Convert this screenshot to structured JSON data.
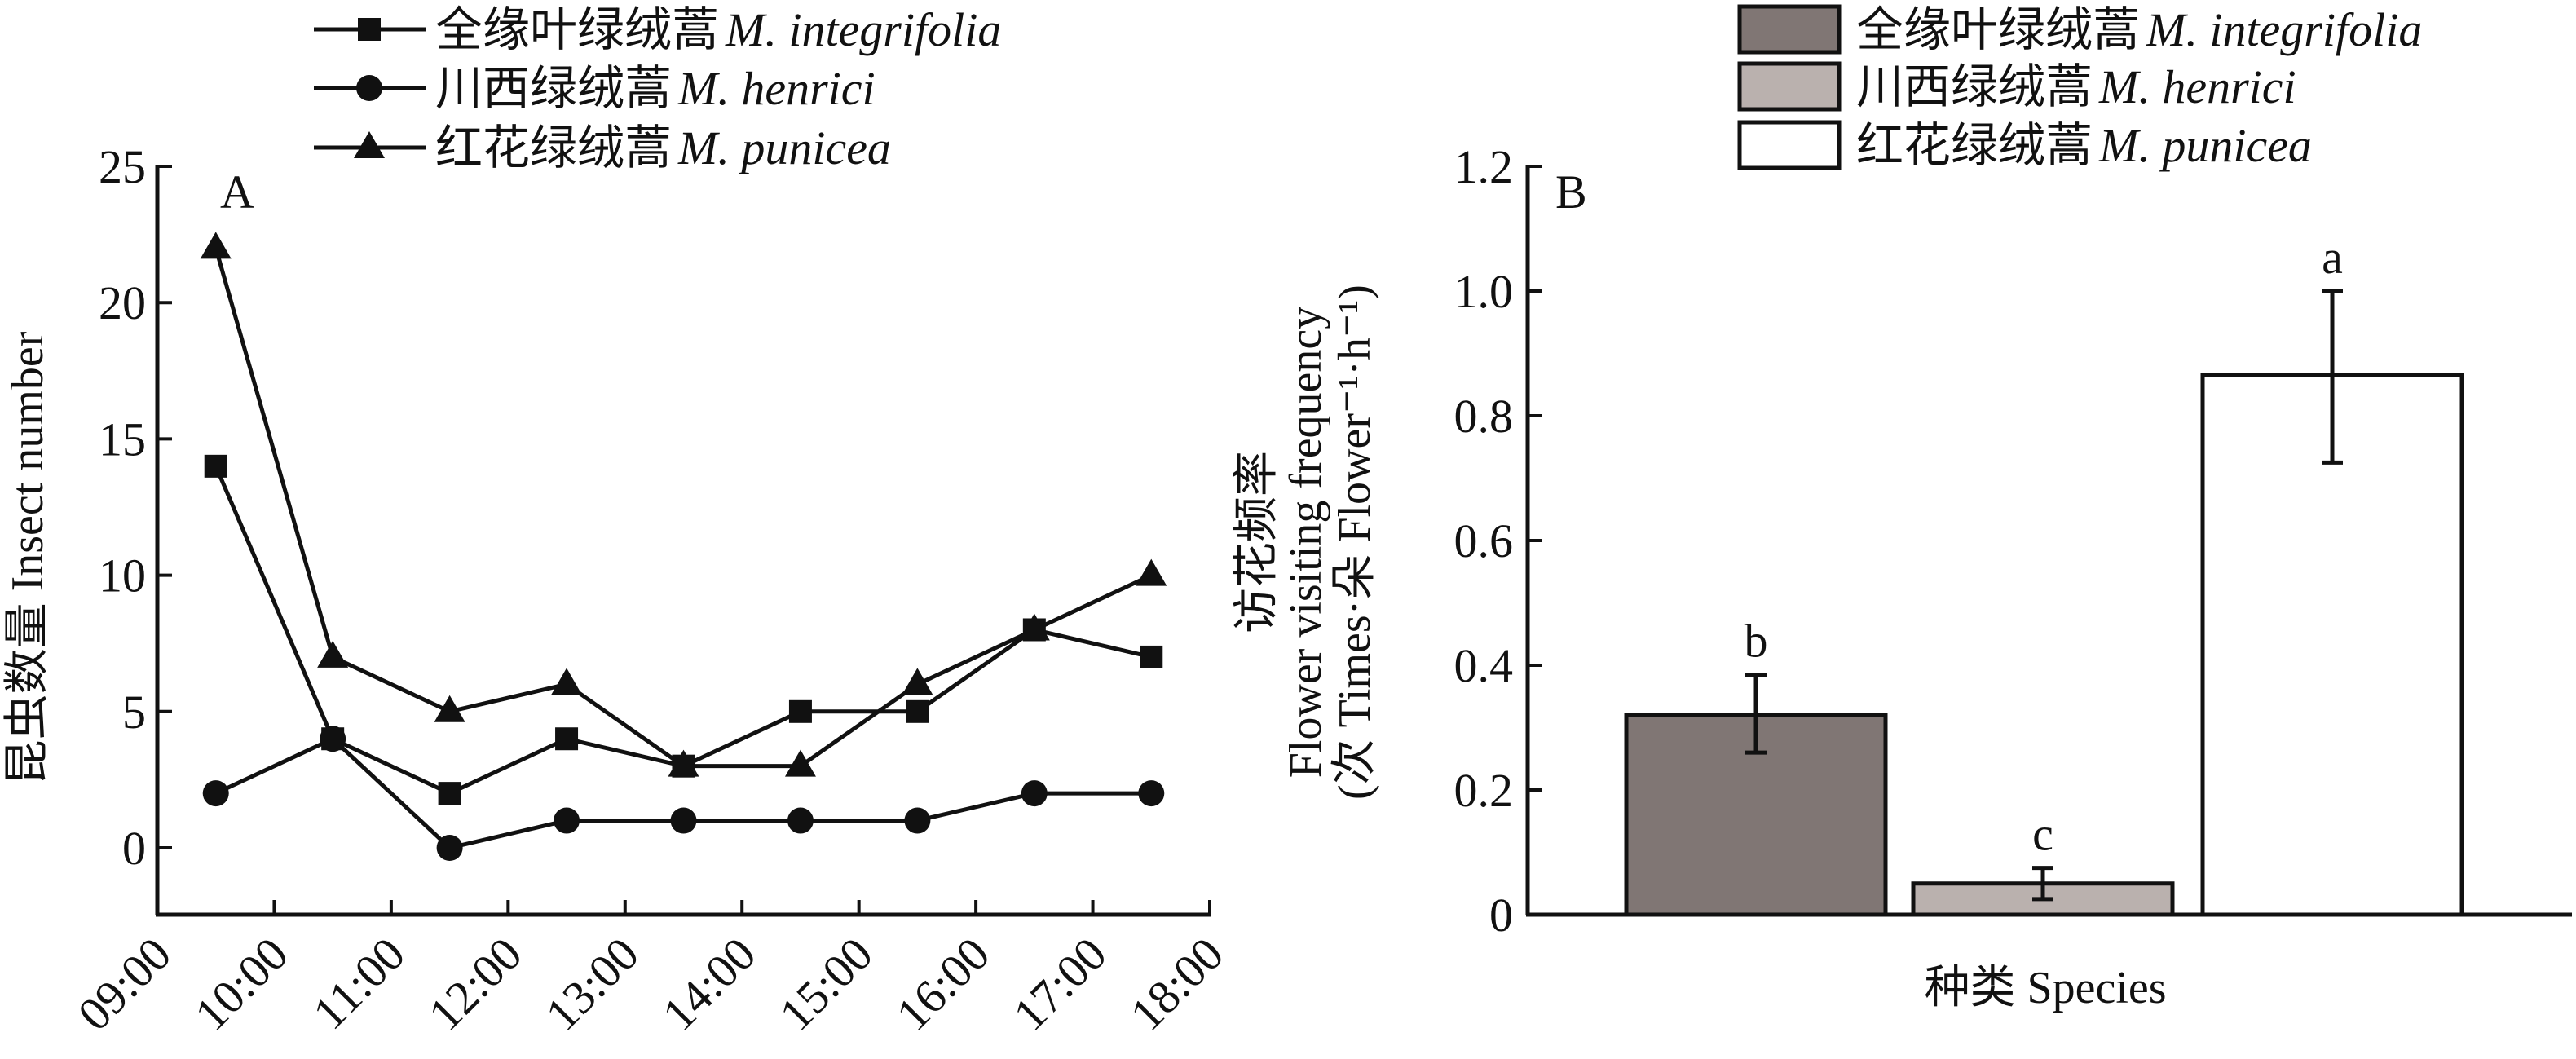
{
  "chart_data": [
    {
      "type": "line",
      "panel_label": "A",
      "ylabel": "昆虫数量 Insect number",
      "ylim": [
        -2.5,
        25
      ],
      "yticks": [
        "0",
        "5",
        "10",
        "15",
        "20",
        "25"
      ],
      "x_tick_labels": [
        "09:00",
        "10:00",
        "11:00",
        "12:00",
        "13:00",
        "14:00",
        "15:00",
        "16:00",
        "17:00",
        "18:00"
      ],
      "x": [
        "09:30",
        "10:30",
        "11:30",
        "12:30",
        "13:30",
        "14:30",
        "15:30",
        "16:30",
        "17:30"
      ],
      "legend_position": "top",
      "series": [
        {
          "name_cn": "全缘叶绿绒蒿",
          "name_latin": "M. integrifolia",
          "marker": "square",
          "values": [
            14,
            4,
            2,
            4,
            3,
            5,
            5,
            8,
            7
          ]
        },
        {
          "name_cn": "川西绿绒蒿",
          "name_latin": "M. henrici",
          "marker": "circle",
          "values": [
            2,
            4,
            0,
            1,
            1,
            1,
            1,
            2,
            2
          ]
        },
        {
          "name_cn": "红花绿绒蒿",
          "name_latin": "M. punicea",
          "marker": "triangle",
          "values": [
            22,
            7,
            5,
            6,
            3,
            3,
            6,
            8,
            10
          ]
        }
      ]
    },
    {
      "type": "bar",
      "panel_label": "B",
      "ylabel_lines": [
        "访花频率",
        "Flower visiting frequency",
        "(次 Times·朵 Flower⁻¹·h⁻¹)"
      ],
      "xlabel": "种类 Species",
      "ylim": [
        0,
        1.2
      ],
      "yticks": [
        "0",
        "0.2",
        "0.4",
        "0.6",
        "0.8",
        "1.0",
        "1.2"
      ],
      "legend_position": "top-right",
      "series": [
        {
          "name_cn": "全缘叶绿绒蒿",
          "name_latin": "M. integrifolia",
          "value": 0.32,
          "err_low": 0.26,
          "err_high": 0.385,
          "letter": "b",
          "color": "#807674"
        },
        {
          "name_cn": "川西绿绒蒿",
          "name_latin": "M. henrici",
          "value": 0.05,
          "err_low": 0.025,
          "err_high": 0.075,
          "letter": "c",
          "color": "#bab1ae"
        },
        {
          "name_cn": "红花绿绒蒿",
          "name_latin": "M. punicea",
          "value": 0.865,
          "err_low": 0.725,
          "err_high": 1.0,
          "letter": "a",
          "color": "#ffffff"
        }
      ]
    }
  ]
}
